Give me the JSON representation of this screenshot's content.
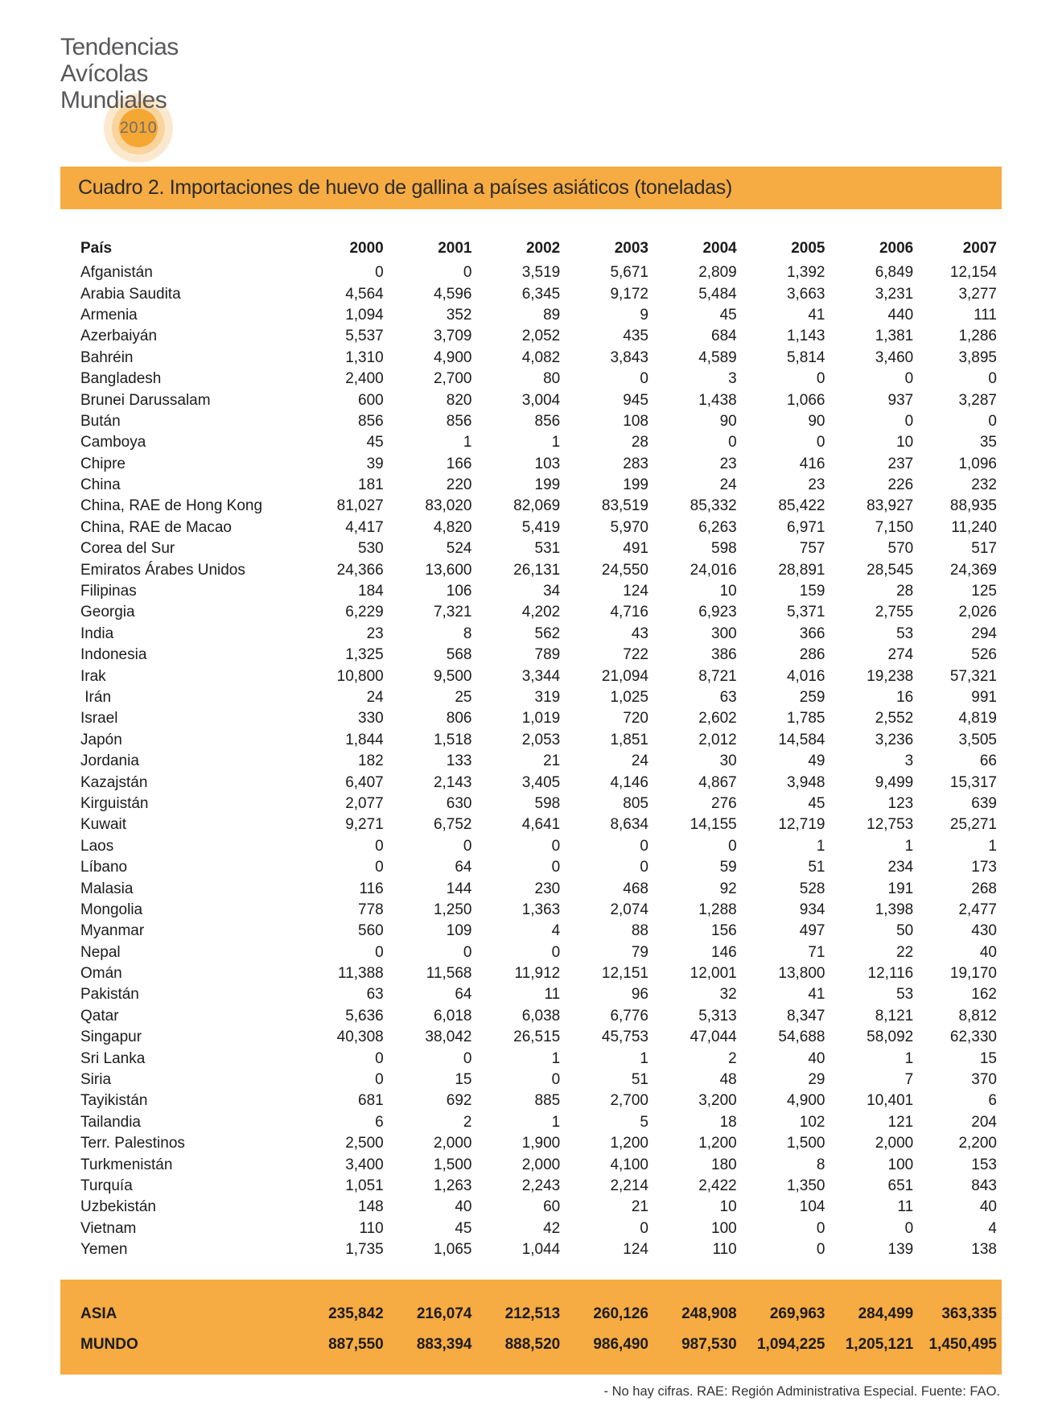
{
  "logo": {
    "line1": "Tendencias",
    "line2": "Avícolas",
    "line3": "Mundiales",
    "year": "2010"
  },
  "title_bar": {
    "text": "Cuadro 2. Importaciones de huevo de gallina a países asiáticos (toneladas)"
  },
  "table": {
    "country_header": "País",
    "year_headers": [
      "2000",
      "2001",
      "2002",
      "2003",
      "2004",
      "2005",
      "2006",
      "2007"
    ],
    "rows": [
      {
        "country": "Afganistán",
        "values": [
          "0",
          "0",
          "3,519",
          "5,671",
          "2,809",
          "1,392",
          "6,849",
          "12,154"
        ]
      },
      {
        "country": "Arabia Saudita",
        "values": [
          "4,564",
          "4,596",
          "6,345",
          "9,172",
          "5,484",
          "3,663",
          "3,231",
          "3,277"
        ]
      },
      {
        "country": "Armenia",
        "values": [
          "1,094",
          "352",
          "89",
          "9",
          "45",
          "41",
          "440",
          "111"
        ]
      },
      {
        "country": "Azerbaiyán",
        "values": [
          "5,537",
          "3,709",
          "2,052",
          "435",
          "684",
          "1,143",
          "1,381",
          "1,286"
        ]
      },
      {
        "country": "Bahréin",
        "values": [
          "1,310",
          "4,900",
          "4,082",
          "3,843",
          "4,589",
          "5,814",
          "3,460",
          "3,895"
        ]
      },
      {
        "country": "Bangladesh",
        "values": [
          "2,400",
          "2,700",
          "80",
          "0",
          "3",
          "0",
          "0",
          "0"
        ]
      },
      {
        "country": "Brunei Darussalam",
        "values": [
          "600",
          "820",
          "3,004",
          "945",
          "1,438",
          "1,066",
          "937",
          "3,287"
        ]
      },
      {
        "country": "Bután",
        "values": [
          "856",
          "856",
          "856",
          "108",
          "90",
          "90",
          "0",
          "0"
        ]
      },
      {
        "country": "Camboya",
        "values": [
          "45",
          "1",
          "1",
          "28",
          "0",
          "0",
          "10",
          "35"
        ]
      },
      {
        "country": "Chipre",
        "values": [
          "39",
          "166",
          "103",
          "283",
          "23",
          "416",
          "237",
          "1,096"
        ]
      },
      {
        "country": "China",
        "values": [
          "181",
          "220",
          "199",
          "199",
          "24",
          "23",
          "226",
          "232"
        ]
      },
      {
        "country": "China, RAE de Hong Kong",
        "values": [
          "81,027",
          "83,020",
          "82,069",
          "83,519",
          "85,332",
          "85,422",
          "83,927",
          "88,935"
        ]
      },
      {
        "country": "China, RAE de Macao",
        "values": [
          "4,417",
          "4,820",
          "5,419",
          "5,970",
          "6,263",
          "6,971",
          "7,150",
          "11,240"
        ]
      },
      {
        "country": "Corea del Sur",
        "values": [
          "530",
          "524",
          "531",
          "491",
          "598",
          "757",
          "570",
          "517"
        ]
      },
      {
        "country": "Emiratos Árabes Unidos",
        "values": [
          "24,366",
          "13,600",
          "26,131",
          "24,550",
          "24,016",
          "28,891",
          "28,545",
          "24,369"
        ]
      },
      {
        "country": "Filipinas",
        "values": [
          "184",
          "106",
          "34",
          "124",
          "10",
          "159",
          "28",
          "125"
        ]
      },
      {
        "country": "Georgia",
        "values": [
          "6,229",
          "7,321",
          "4,202",
          "4,716",
          "6,923",
          "5,371",
          "2,755",
          "2,026"
        ]
      },
      {
        "country": "India",
        "values": [
          "23",
          "8",
          "562",
          "43",
          "300",
          "366",
          "53",
          "294"
        ]
      },
      {
        "country": "Indonesia",
        "values": [
          "1,325",
          "568",
          "789",
          "722",
          "386",
          "286",
          "274",
          "526"
        ]
      },
      {
        "country": "Irak",
        "values": [
          "10,800",
          "9,500",
          "3,344",
          "21,094",
          "8,721",
          "4,016",
          "19,238",
          "57,321"
        ]
      },
      {
        "country": " Irán",
        "values": [
          "24",
          "25",
          "319",
          "1,025",
          "63",
          "259",
          "16",
          "991"
        ]
      },
      {
        "country": "Israel",
        "values": [
          "330",
          "806",
          "1,019",
          "720",
          "2,602",
          "1,785",
          "2,552",
          "4,819"
        ]
      },
      {
        "country": "Japón",
        "values": [
          "1,844",
          "1,518",
          "2,053",
          "1,851",
          "2,012",
          "14,584",
          "3,236",
          "3,505"
        ]
      },
      {
        "country": "Jordania",
        "values": [
          "182",
          "133",
          "21",
          "24",
          "30",
          "49",
          "3",
          "66"
        ]
      },
      {
        "country": "Kazajstán",
        "values": [
          "6,407",
          "2,143",
          "3,405",
          "4,146",
          "4,867",
          "3,948",
          "9,499",
          "15,317"
        ]
      },
      {
        "country": "Kirguistán",
        "values": [
          "2,077",
          "630",
          "598",
          "805",
          "276",
          "45",
          "123",
          "639"
        ]
      },
      {
        "country": "Kuwait",
        "values": [
          "9,271",
          "6,752",
          "4,641",
          "8,634",
          "14,155",
          "12,719",
          "12,753",
          "25,271"
        ]
      },
      {
        "country": "Laos",
        "values": [
          "0",
          "0",
          "0",
          "0",
          "0",
          "1",
          "1",
          "1"
        ]
      },
      {
        "country": "Líbano",
        "values": [
          "0",
          "64",
          "0",
          "0",
          "59",
          "51",
          "234",
          "173"
        ]
      },
      {
        "country": "Malasia",
        "values": [
          "116",
          "144",
          "230",
          "468",
          "92",
          "528",
          "191",
          "268"
        ]
      },
      {
        "country": "Mongolia",
        "values": [
          "778",
          "1,250",
          "1,363",
          "2,074",
          "1,288",
          "934",
          "1,398",
          "2,477"
        ]
      },
      {
        "country": "Myanmar",
        "values": [
          "560",
          "109",
          "4",
          "88",
          "156",
          "497",
          "50",
          "430"
        ]
      },
      {
        "country": "Nepal",
        "values": [
          "0",
          "0",
          "0",
          "79",
          "146",
          "71",
          "22",
          "40"
        ]
      },
      {
        "country": "Omán",
        "values": [
          "11,388",
          "11,568",
          "11,912",
          "12,151",
          "12,001",
          "13,800",
          "12,116",
          "19,170"
        ]
      },
      {
        "country": "Pakistán",
        "values": [
          "63",
          "64",
          "11",
          "96",
          "32",
          "41",
          "53",
          "162"
        ]
      },
      {
        "country": "Qatar",
        "values": [
          "5,636",
          "6,018",
          "6,038",
          "6,776",
          "5,313",
          "8,347",
          "8,121",
          "8,812"
        ]
      },
      {
        "country": "Singapur",
        "values": [
          "40,308",
          "38,042",
          "26,515",
          "45,753",
          "47,044",
          "54,688",
          "58,092",
          "62,330"
        ]
      },
      {
        "country": "Sri Lanka",
        "values": [
          "0",
          "0",
          "1",
          "1",
          "2",
          "40",
          "1",
          "15"
        ]
      },
      {
        "country": "Siria",
        "values": [
          "0",
          "15",
          "0",
          "51",
          "48",
          "29",
          "7",
          "370"
        ]
      },
      {
        "country": "Tayikistán",
        "values": [
          "681",
          "692",
          "885",
          "2,700",
          "3,200",
          "4,900",
          "10,401",
          "6"
        ]
      },
      {
        "country": "Tailandia",
        "values": [
          "6",
          "2",
          "1",
          "5",
          "18",
          "102",
          "121",
          "204"
        ]
      },
      {
        "country": "Terr. Palestinos",
        "values": [
          "2,500",
          "2,000",
          "1,900",
          "1,200",
          "1,200",
          "1,500",
          "2,000",
          "2,200"
        ]
      },
      {
        "country": "Turkmenistán",
        "values": [
          "3,400",
          "1,500",
          "2,000",
          "4,100",
          "180",
          "8",
          "100",
          "153"
        ]
      },
      {
        "country": "Turquía",
        "values": [
          "1,051",
          "1,263",
          "2,243",
          "2,214",
          "2,422",
          "1,350",
          "651",
          "843"
        ]
      },
      {
        "country": "Uzbekistán",
        "values": [
          "148",
          "40",
          "60",
          "21",
          "10",
          "104",
          "11",
          "40"
        ]
      },
      {
        "country": "Vietnam",
        "values": [
          "110",
          "45",
          "42",
          "0",
          "100",
          "0",
          "0",
          "4"
        ]
      },
      {
        "country": "Yemen",
        "values": [
          "1,735",
          "1,065",
          "1,044",
          "124",
          "110",
          "0",
          "139",
          "138"
        ]
      }
    ],
    "totals": [
      {
        "label": "ASIA",
        "values": [
          "235,842",
          "216,074",
          "212,513",
          "260,126",
          "248,908",
          "269,963",
          "284,499",
          "363,335"
        ]
      },
      {
        "label": "MUNDO",
        "values": [
          "887,550",
          "883,394",
          "888,520",
          "986,490",
          "987,530",
          "1,094,225",
          "1,205,121",
          "1,450,495"
        ]
      }
    ]
  },
  "footnote": "- No hay cifras. RAE: Región Administrativa Especial. Fuente: FAO.",
  "colors": {
    "accent_orange": "#F6AB43",
    "badge_core_orange": "#F5A733",
    "badge_ring_mid": "#F9D49C",
    "badge_ring_outer": "#FBE9CF",
    "logo_text_gray": "#58585B",
    "badge_year_gray": "#6E6E71",
    "text_dark": "#1C1C1C",
    "footnote_gray": "#333333"
  }
}
